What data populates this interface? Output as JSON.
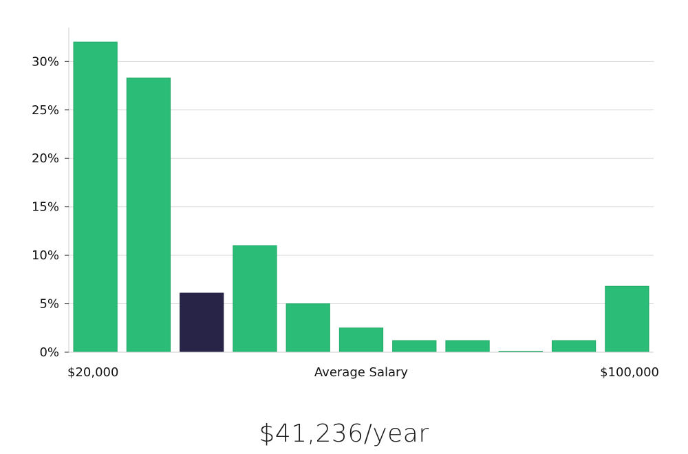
{
  "chart_data": {
    "type": "bar",
    "title": "",
    "xlabel": "Average Salary",
    "x_min_label": "$20,000",
    "x_max_label": "$100,000",
    "ylabel": "",
    "ylim": [
      0,
      33.5
    ],
    "yticks": [
      0,
      5,
      10,
      15,
      20,
      25,
      30
    ],
    "y_tick_labels": [
      "0%",
      "5%",
      "10%",
      "15%",
      "20%",
      "25%",
      "30%"
    ],
    "values": [
      32.0,
      28.3,
      6.1,
      11.0,
      5.0,
      2.5,
      1.2,
      1.2,
      0.1,
      1.2,
      6.8
    ],
    "highlight_index": 2,
    "bar_color": "#2bbd77",
    "bar_edge_color": "#22a866",
    "highlight_color": "#272448",
    "grid": true
  },
  "summary": {
    "salary_text": "$41,236/year"
  }
}
